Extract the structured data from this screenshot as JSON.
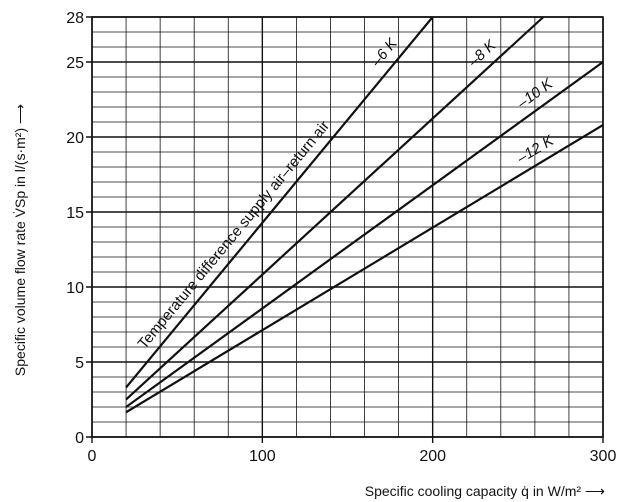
{
  "chart_data": {
    "type": "line",
    "xlabel": "Specific cooling capacity q̇ in W/m² ⟶",
    "ylabel": "Specific volume flow rate V̇Sp in l/(s·m²) ⟶",
    "annotation": "Temperature difference supply air–return air",
    "xlim": [
      0,
      300
    ],
    "ylim": [
      0,
      28
    ],
    "xticks": [
      0,
      100,
      200,
      300
    ],
    "yticks": [
      0,
      5,
      10,
      15,
      20,
      25,
      28
    ],
    "x_minor_step": 20,
    "y_minor_step": 1,
    "grid": true,
    "series": [
      {
        "name": "–6 K",
        "x": [
          20,
          200
        ],
        "y": [
          3.3,
          28.0
        ]
      },
      {
        "name": "–8 K",
        "x": [
          20,
          265
        ],
        "y": [
          2.5,
          28.0
        ]
      },
      {
        "name": "–10 K",
        "x": [
          20,
          300
        ],
        "y": [
          2.0,
          25.0
        ]
      },
      {
        "name": "–12 K",
        "x": [
          20,
          300
        ],
        "y": [
          1.65,
          20.8
        ]
      }
    ]
  }
}
